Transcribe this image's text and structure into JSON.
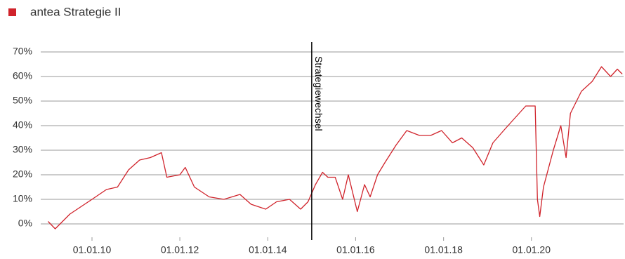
{
  "chart_data": {
    "type": "line",
    "x": [
      "2009-01-01",
      "2009-03-01",
      "2009-07-01",
      "2010-01-01",
      "2010-05-01",
      "2010-08-01",
      "2010-11-01",
      "2011-02-01",
      "2011-05-01",
      "2011-08-01",
      "2011-09-15",
      "2012-01-01",
      "2012-02-15",
      "2012-05-01",
      "2012-09-01",
      "2013-01-01",
      "2013-05-15",
      "2013-08-15",
      "2013-12-15",
      "2014-03-15",
      "2014-07-01",
      "2014-10-01",
      "2014-12-01",
      "2015-02-01",
      "2015-04-01",
      "2015-05-15",
      "2015-07-15",
      "2015-09-15",
      "2015-11-01",
      "2016-01-15",
      "2016-03-15",
      "2016-05-01",
      "2016-07-01",
      "2016-09-01",
      "2016-12-01",
      "2017-03-01",
      "2017-06-15",
      "2017-09-15",
      "2017-12-15",
      "2018-03-15",
      "2018-06-01",
      "2018-09-01",
      "2018-12-01",
      "2019-02-15",
      "2019-05-15",
      "2019-08-15",
      "2019-11-15",
      "2020-02-01",
      "2020-02-20",
      "2020-03-10",
      "2020-04-10",
      "2020-07-01",
      "2020-09-01",
      "2020-10-15",
      "2020-11-20",
      "2021-02-20",
      "2021-05-20",
      "2021-08-05",
      "2021-10-20",
      "2021-12-15",
      "2022-01-25"
    ],
    "series": [
      {
        "name": "antea Strategie II",
        "color": "#d0232b",
        "values": [
          1,
          -2,
          4,
          10,
          14,
          15,
          22,
          26,
          27,
          29,
          19,
          20,
          23,
          15,
          11,
          10,
          12,
          8,
          6,
          9,
          10,
          6,
          9,
          16,
          21,
          19,
          19,
          10,
          20,
          5,
          16,
          11,
          20,
          25,
          32,
          38,
          36,
          36,
          38,
          33,
          35,
          31,
          24,
          33,
          38,
          43,
          48,
          48,
          10,
          3,
          15,
          30,
          40,
          27,
          45,
          54,
          58,
          64,
          60,
          63,
          61
        ]
      }
    ],
    "xlim": [
      "2008-11-01",
      "2022-02-05"
    ],
    "xticks": [
      {
        "value": "2010-01-01",
        "label": "01.01.10"
      },
      {
        "value": "2012-01-01",
        "label": "01.01.12"
      },
      {
        "value": "2014-01-01",
        "label": "01.01.14"
      },
      {
        "value": "2016-01-01",
        "label": "01.01.16"
      },
      {
        "value": "2018-01-01",
        "label": "01.01.18"
      },
      {
        "value": "2020-01-01",
        "label": "01.01.20"
      }
    ],
    "ylim": [
      -6,
      74
    ],
    "yticks": [
      {
        "value": 0,
        "label": "0%"
      },
      {
        "value": 10,
        "label": "10%"
      },
      {
        "value": 20,
        "label": "20%"
      },
      {
        "value": 30,
        "label": "30%"
      },
      {
        "value": 40,
        "label": "40%"
      },
      {
        "value": 50,
        "label": "50%"
      },
      {
        "value": 60,
        "label": "60%"
      },
      {
        "value": 70,
        "label": "70%"
      }
    ],
    "grid": true,
    "annotations": [
      {
        "x": "2015-01-01",
        "text": "Strategiewechsel"
      }
    ]
  }
}
